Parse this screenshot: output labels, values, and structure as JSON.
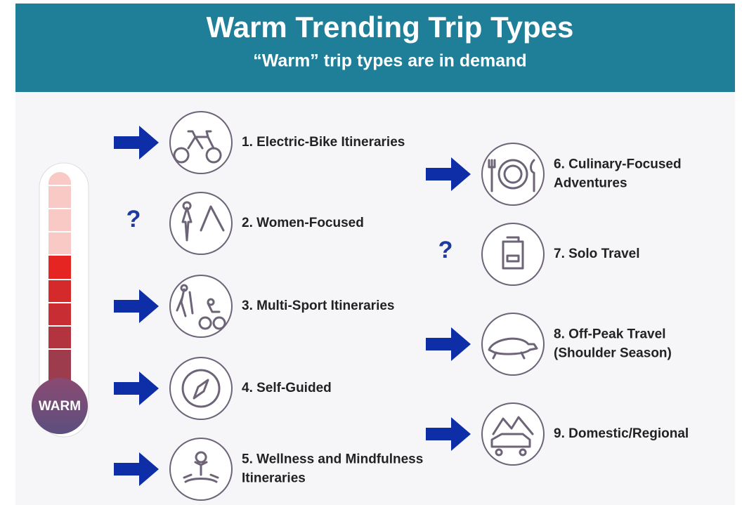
{
  "header": {
    "title": "Warm Trending Trip Types",
    "subtitle": "“Warm” trip types are in demand"
  },
  "thermometer": {
    "label": "WARM"
  },
  "items": [
    {
      "lines": [
        "1. Electric-Bike Itineraries"
      ]
    },
    {
      "lines": [
        "2. Women-Focused"
      ],
      "mark": "?"
    },
    {
      "lines": [
        "3. Multi-Sport Itineraries"
      ]
    },
    {
      "lines": [
        "4. Self-Guided"
      ]
    },
    {
      "lines": [
        "5. Wellness and Mindfulness",
        "Itineraries"
      ]
    },
    {
      "lines": [
        "6. Culinary-Focused",
        "Adventures"
      ]
    },
    {
      "lines": [
        "7. Solo Travel"
      ],
      "mark": "?"
    },
    {
      "lines": [
        "8. Off-Peak Travel",
        "(Shoulder Season)"
      ]
    },
    {
      "lines": [
        "9. Domestic/Regional"
      ]
    }
  ]
}
